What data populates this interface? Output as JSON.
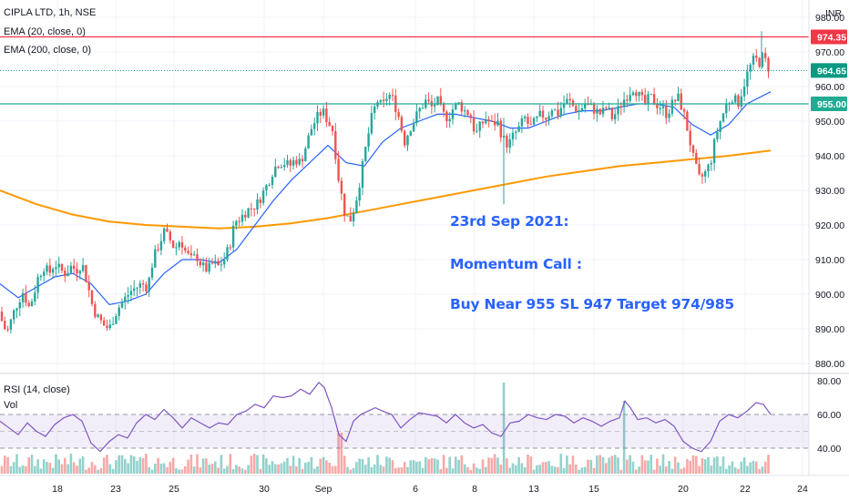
{
  "header": {
    "symbol": "CIPLA LTD, 1h, NSE",
    "ema20": "EMA (20, close, 0)",
    "ema200": "EMA (200, close, 0)",
    "currency": "INR"
  },
  "rsi_panel": {
    "rsi_label": "RSI (14, close)",
    "vol_label": "Vol"
  },
  "annotation": {
    "date": "23rd Sep 2021:",
    "title": "Momentum Call :",
    "call": "Buy Near 955 SL 947 Target 974/985"
  },
  "price_badges": [
    {
      "value": "974.35",
      "color": "#f23645"
    },
    {
      "value": "964.65",
      "color": "#089981"
    },
    {
      "value": "955.00",
      "color": "#22ab94"
    }
  ],
  "colors": {
    "up": "#26a69a",
    "down": "#ef5350",
    "ema20": "#2962ff",
    "ema200": "#ff9800",
    "rsi": "#7e57c2",
    "resistance": "#f23645",
    "support": "#22ab94"
  },
  "chart_data": {
    "type": "candlestick",
    "y_axis": {
      "ticks": [
        "980.00",
        "970.00",
        "960.00",
        "950.00",
        "940.00",
        "930.00",
        "920.00",
        "910.00",
        "900.00",
        "890.00",
        "880.00"
      ],
      "range": [
        877,
        982
      ]
    },
    "x_axis": {
      "ticks": [
        "18",
        "23",
        "25",
        "30",
        "Sep",
        "6",
        "8",
        "13",
        "15",
        "20",
        "22",
        "24"
      ]
    },
    "horizontal_lines": [
      974.35,
      955.0
    ],
    "last_price": 964.65,
    "close_path": [
      [
        0,
        895
      ],
      [
        3,
        891
      ],
      [
        8,
        889
      ],
      [
        14,
        894
      ],
      [
        20,
        898
      ],
      [
        26,
        901
      ],
      [
        31,
        896
      ],
      [
        36,
        899
      ],
      [
        42,
        905
      ],
      [
        48,
        908
      ],
      [
        54,
        906
      ],
      [
        60,
        909
      ],
      [
        66,
        907
      ],
      [
        72,
        906
      ],
      [
        78,
        908
      ],
      [
        84,
        907
      ],
      [
        90,
        909
      ],
      [
        96,
        903
      ],
      [
        102,
        896
      ],
      [
        108,
        893
      ],
      [
        114,
        891
      ],
      [
        120,
        890
      ],
      [
        126,
        894
      ],
      [
        132,
        897
      ],
      [
        138,
        899
      ],
      [
        144,
        901
      ],
      [
        150,
        902
      ],
      [
        156,
        903
      ],
      [
        162,
        902
      ],
      [
        168,
        910
      ],
      [
        174,
        914
      ],
      [
        180,
        918
      ],
      [
        186,
        916
      ],
      [
        192,
        913
      ],
      [
        198,
        916
      ],
      [
        204,
        912
      ],
      [
        210,
        910
      ],
      [
        216,
        911
      ],
      [
        222,
        908
      ],
      [
        228,
        907
      ],
      [
        234,
        909
      ],
      [
        240,
        908
      ],
      [
        246,
        910
      ],
      [
        252,
        914
      ],
      [
        258,
        921
      ],
      [
        264,
        922
      ],
      [
        270,
        924
      ],
      [
        276,
        925
      ],
      [
        282,
        926
      ],
      [
        288,
        929
      ],
      [
        294,
        932
      ],
      [
        300,
        936
      ],
      [
        306,
        938
      ],
      [
        312,
        938
      ],
      [
        318,
        937
      ],
      [
        324,
        939
      ],
      [
        330,
        938
      ],
      [
        336,
        943
      ],
      [
        342,
        948
      ],
      [
        348,
        951
      ],
      [
        354,
        953
      ],
      [
        360,
        950
      ],
      [
        366,
        947
      ],
      [
        370,
        936
      ],
      [
        374,
        930
      ],
      [
        378,
        924
      ],
      [
        384,
        921
      ],
      [
        390,
        926
      ],
      [
        396,
        934
      ],
      [
        402,
        943
      ],
      [
        408,
        951
      ],
      [
        414,
        956
      ],
      [
        420,
        954
      ],
      [
        426,
        958
      ],
      [
        432,
        956
      ],
      [
        438,
        951
      ],
      [
        444,
        944
      ],
      [
        450,
        948
      ],
      [
        456,
        951
      ],
      [
        462,
        954
      ],
      [
        468,
        956
      ],
      [
        474,
        954
      ],
      [
        480,
        956
      ],
      [
        486,
        952
      ],
      [
        492,
        951
      ],
      [
        498,
        954
      ],
      [
        504,
        955
      ],
      [
        510,
        953
      ],
      [
        516,
        952
      ],
      [
        522,
        946
      ],
      [
        528,
        949
      ],
      [
        534,
        951
      ],
      [
        540,
        949
      ],
      [
        546,
        950
      ],
      [
        552,
        945
      ],
      [
        558,
        943
      ],
      [
        564,
        946
      ],
      [
        570,
        948
      ],
      [
        576,
        951
      ],
      [
        582,
        948
      ],
      [
        588,
        950
      ],
      [
        594,
        952
      ],
      [
        600,
        951
      ],
      [
        606,
        954
      ],
      [
        612,
        952
      ],
      [
        618,
        955
      ],
      [
        624,
        956
      ],
      [
        630,
        954
      ],
      [
        636,
        953
      ],
      [
        642,
        955
      ],
      [
        648,
        954
      ],
      [
        654,
        953
      ],
      [
        660,
        952
      ],
      [
        666,
        954
      ],
      [
        672,
        951
      ],
      [
        678,
        953
      ],
      [
        684,
        956
      ],
      [
        690,
        958
      ],
      [
        696,
        960
      ],
      [
        702,
        957
      ],
      [
        708,
        955
      ],
      [
        714,
        957
      ],
      [
        720,
        955
      ],
      [
        726,
        954
      ],
      [
        732,
        952
      ],
      [
        738,
        955
      ],
      [
        744,
        957
      ],
      [
        750,
        953
      ],
      [
        756,
        946
      ],
      [
        762,
        938
      ],
      [
        768,
        933
      ],
      [
        774,
        935
      ],
      [
        780,
        938
      ],
      [
        786,
        946
      ],
      [
        792,
        951
      ],
      [
        798,
        955
      ],
      [
        804,
        957
      ],
      [
        810,
        955
      ],
      [
        816,
        960
      ],
      [
        822,
        965
      ],
      [
        828,
        968
      ],
      [
        834,
        967
      ],
      [
        838,
        969
      ],
      [
        842,
        966
      ],
      [
        846,
        964.65
      ]
    ],
    "ema20": [
      [
        0,
        903
      ],
      [
        20,
        899
      ],
      [
        40,
        902
      ],
      [
        60,
        905
      ],
      [
        80,
        906
      ],
      [
        100,
        903
      ],
      [
        120,
        897
      ],
      [
        140,
        898
      ],
      [
        160,
        900
      ],
      [
        180,
        906
      ],
      [
        200,
        910
      ],
      [
        220,
        910
      ],
      [
        240,
        909
      ],
      [
        260,
        913
      ],
      [
        280,
        920
      ],
      [
        300,
        927
      ],
      [
        320,
        933
      ],
      [
        340,
        938
      ],
      [
        360,
        943
      ],
      [
        380,
        938
      ],
      [
        400,
        937
      ],
      [
        420,
        944
      ],
      [
        440,
        948
      ],
      [
        460,
        950
      ],
      [
        480,
        952
      ],
      [
        500,
        952
      ],
      [
        520,
        951
      ],
      [
        540,
        950
      ],
      [
        560,
        948
      ],
      [
        580,
        948
      ],
      [
        600,
        950
      ],
      [
        620,
        952
      ],
      [
        640,
        953
      ],
      [
        660,
        953
      ],
      [
        680,
        954
      ],
      [
        700,
        955
      ],
      [
        720,
        955
      ],
      [
        740,
        954
      ],
      [
        760,
        949
      ],
      [
        780,
        946
      ],
      [
        800,
        949
      ],
      [
        820,
        955
      ],
      [
        846,
        958.5
      ]
    ],
    "ema200": [
      [
        0,
        930
      ],
      [
        40,
        926
      ],
      [
        80,
        923
      ],
      [
        120,
        921
      ],
      [
        160,
        920
      ],
      [
        200,
        919.5
      ],
      [
        240,
        919
      ],
      [
        280,
        919.5
      ],
      [
        320,
        920.5
      ],
      [
        360,
        922
      ],
      [
        400,
        924
      ],
      [
        440,
        926
      ],
      [
        480,
        928
      ],
      [
        520,
        930
      ],
      [
        560,
        932
      ],
      [
        600,
        934
      ],
      [
        640,
        935.5
      ],
      [
        680,
        937
      ],
      [
        720,
        938
      ],
      [
        760,
        939
      ],
      [
        800,
        940
      ],
      [
        846,
        941.5
      ]
    ],
    "rsi": {
      "levels": [
        60,
        50,
        40
      ],
      "axis_ticks": [
        "80.00",
        "60.00",
        "40.00"
      ],
      "path": [
        [
          0,
          56
        ],
        [
          10,
          52
        ],
        [
          20,
          48
        ],
        [
          30,
          55
        ],
        [
          40,
          50
        ],
        [
          50,
          47
        ],
        [
          60,
          54
        ],
        [
          70,
          58
        ],
        [
          80,
          60
        ],
        [
          90,
          56
        ],
        [
          100,
          43
        ],
        [
          110,
          38
        ],
        [
          120,
          44
        ],
        [
          130,
          48
        ],
        [
          140,
          46
        ],
        [
          150,
          55
        ],
        [
          160,
          60
        ],
        [
          170,
          57
        ],
        [
          180,
          63
        ],
        [
          190,
          58
        ],
        [
          200,
          52
        ],
        [
          210,
          58
        ],
        [
          220,
          55
        ],
        [
          230,
          52
        ],
        [
          240,
          55
        ],
        [
          250,
          54
        ],
        [
          260,
          60
        ],
        [
          270,
          62
        ],
        [
          280,
          66
        ],
        [
          290,
          64
        ],
        [
          300,
          71
        ],
        [
          310,
          70
        ],
        [
          320,
          71
        ],
        [
          330,
          75
        ],
        [
          340,
          72
        ],
        [
          350,
          79
        ],
        [
          356,
          76
        ],
        [
          364,
          64
        ],
        [
          372,
          48
        ],
        [
          380,
          44
        ],
        [
          388,
          56
        ],
        [
          396,
          60
        ],
        [
          404,
          62
        ],
        [
          412,
          64
        ],
        [
          420,
          62
        ],
        [
          430,
          60
        ],
        [
          440,
          52
        ],
        [
          450,
          57
        ],
        [
          460,
          61
        ],
        [
          470,
          60
        ],
        [
          480,
          59
        ],
        [
          490,
          55
        ],
        [
          500,
          60
        ],
        [
          510,
          55
        ],
        [
          520,
          52
        ],
        [
          530,
          54
        ],
        [
          540,
          49
        ],
        [
          550,
          47
        ],
        [
          560,
          55
        ],
        [
          570,
          56
        ],
        [
          580,
          60
        ],
        [
          590,
          58
        ],
        [
          600,
          57
        ],
        [
          610,
          60
        ],
        [
          620,
          59
        ],
        [
          630,
          55
        ],
        [
          640,
          58
        ],
        [
          650,
          56
        ],
        [
          660,
          53
        ],
        [
          670,
          56
        ],
        [
          680,
          58
        ],
        [
          686,
          68
        ],
        [
          692,
          64
        ],
        [
          700,
          57
        ],
        [
          710,
          58
        ],
        [
          720,
          55
        ],
        [
          730,
          57
        ],
        [
          740,
          53
        ],
        [
          750,
          44
        ],
        [
          760,
          40
        ],
        [
          770,
          38
        ],
        [
          780,
          44
        ],
        [
          790,
          56
        ],
        [
          800,
          60
        ],
        [
          810,
          58
        ],
        [
          820,
          62
        ],
        [
          830,
          67
        ],
        [
          838,
          66
        ],
        [
          846,
          60
        ]
      ]
    }
  }
}
